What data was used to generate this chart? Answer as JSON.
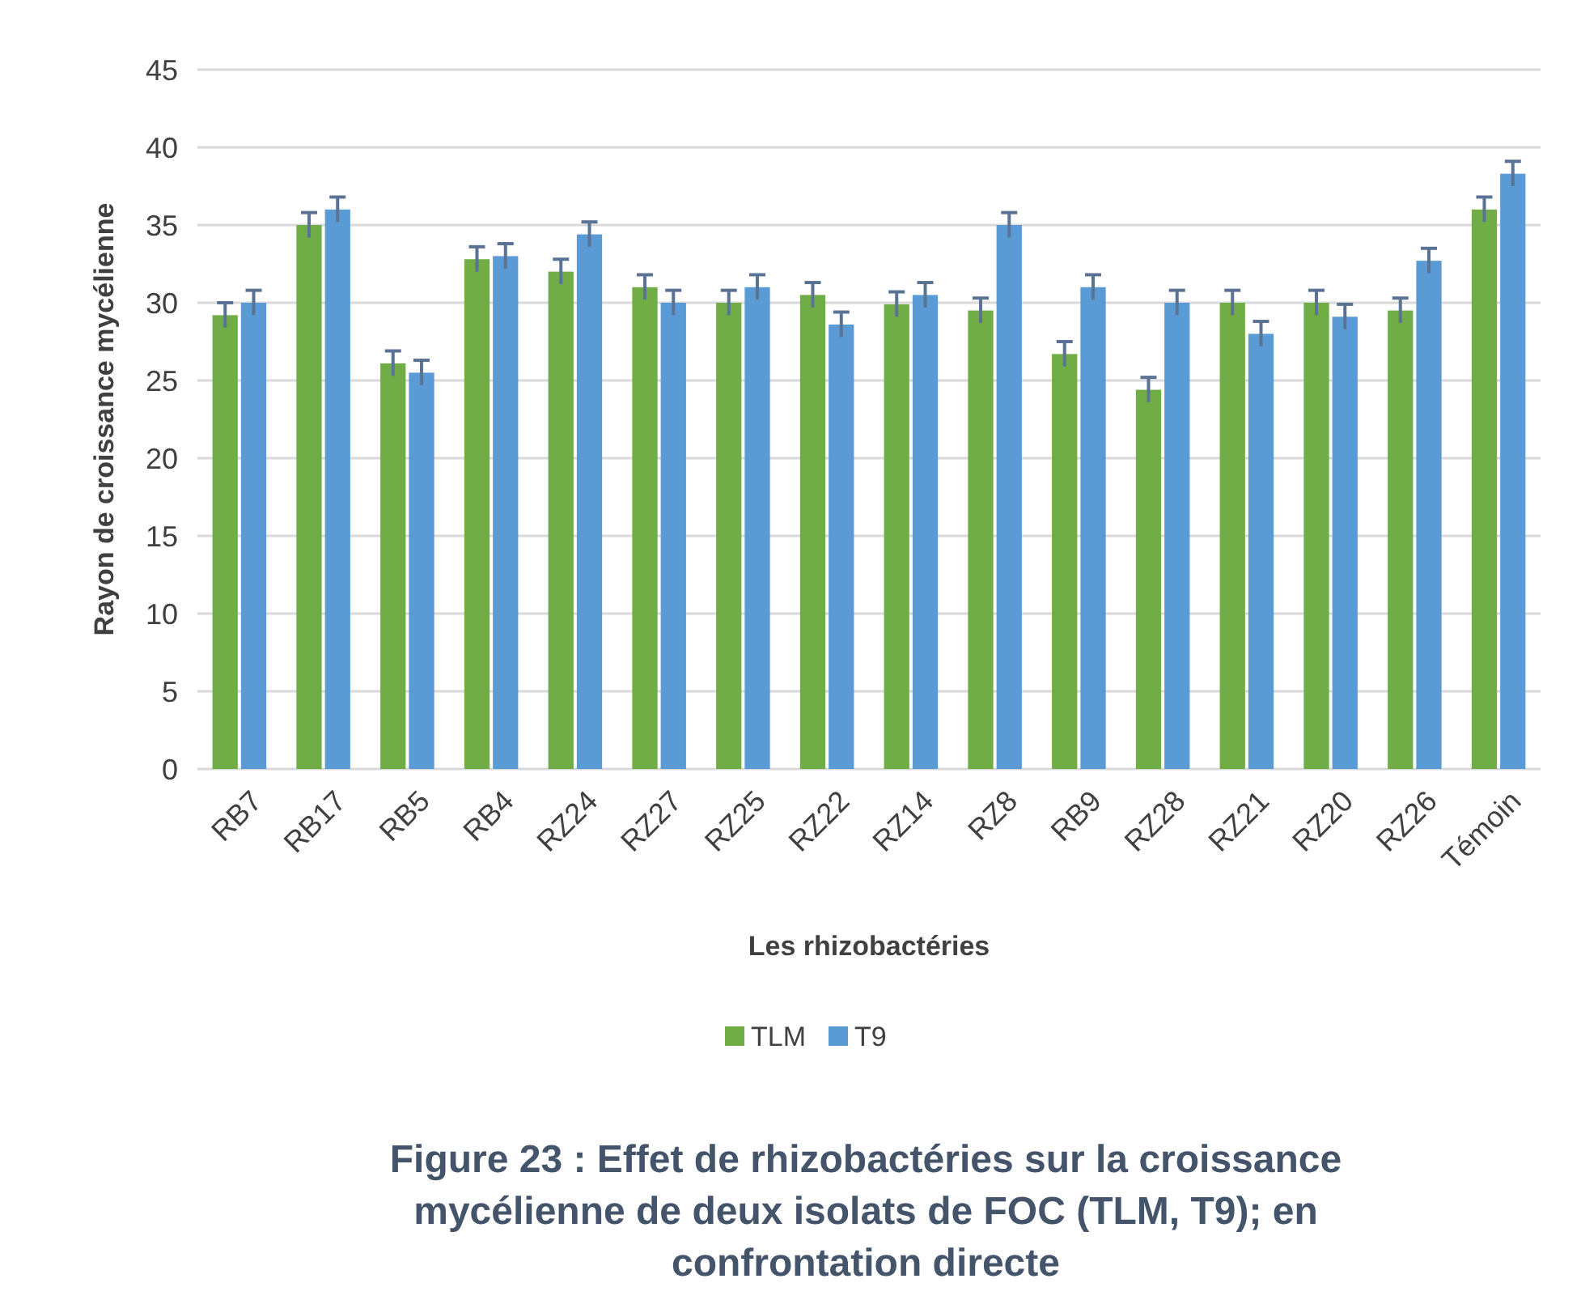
{
  "chart_data": {
    "type": "bar",
    "title": "Figure 23 : Effet de rhizobactéries sur la croissance mycélienne de deux isolats de FOC (TLM, T9); en confrontation directe",
    "xlabel": "Les rhizobactéries",
    "ylabel": "Rayon  de croissance mycélienne",
    "categories": [
      "RB7",
      "RB17",
      "RB5",
      "RB4",
      "RZ24",
      "RZ27",
      "RZ25",
      "RZ22",
      "RZ14",
      "RZ8",
      "RB9",
      "RZ28",
      "RZ21",
      "RZ20",
      "RZ26",
      "Témoin"
    ],
    "series": [
      {
        "name": "TLM",
        "color": "#70ad47",
        "values": [
          29.2,
          35,
          26.1,
          32.8,
          32,
          31,
          30,
          30.5,
          29.9,
          29.5,
          26.7,
          24.4,
          30,
          30,
          29.5,
          36
        ],
        "errors": [
          0.8,
          0.8,
          0.8,
          0.8,
          0.8,
          0.8,
          0.8,
          0.8,
          0.8,
          0.8,
          0.8,
          0.8,
          0.8,
          0.8,
          0.8,
          0.8
        ]
      },
      {
        "name": "T9",
        "color": "#5b9bd5",
        "values": [
          30,
          36,
          25.5,
          33,
          34.4,
          30,
          31,
          28.6,
          30.5,
          35,
          31,
          30,
          28,
          29.1,
          32.7,
          38.3
        ],
        "errors": [
          0.8,
          0.8,
          0.8,
          0.8,
          0.8,
          0.8,
          0.8,
          0.8,
          0.8,
          0.8,
          0.8,
          0.8,
          0.8,
          0.8,
          0.8,
          0.8
        ]
      }
    ],
    "ylim": [
      0,
      45
    ],
    "yticks": [
      0,
      5,
      10,
      15,
      20,
      25,
      30,
      35,
      40,
      45
    ],
    "grid": "y",
    "legend": "bottom"
  }
}
